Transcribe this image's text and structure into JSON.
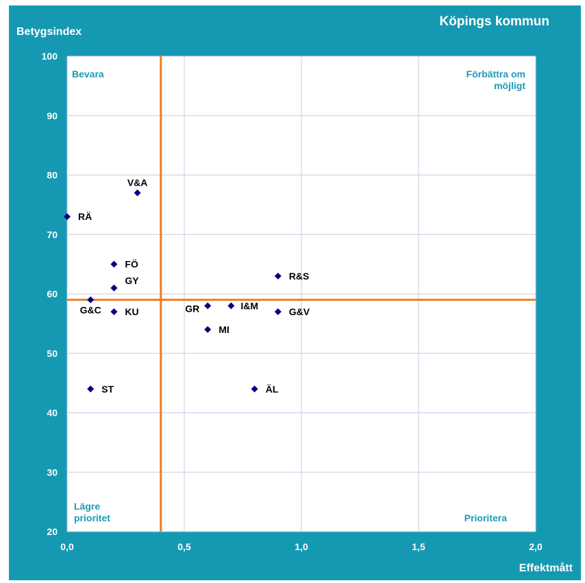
{
  "chart_data": {
    "type": "scatter",
    "title": "Köpings kommun",
    "xlabel": "Effektmått",
    "ylabel": "Betygsindex",
    "xlim": [
      0,
      2
    ],
    "ylim": [
      20,
      100
    ],
    "x_ticks": [
      0,
      0.5,
      1.0,
      1.5,
      2.0
    ],
    "x_tick_labels": [
      "0,0",
      "0,5",
      "1,0",
      "1,5",
      "2,0"
    ],
    "y_ticks": [
      20,
      30,
      40,
      50,
      60,
      70,
      80,
      90,
      100
    ],
    "y_tick_labels": [
      "20",
      "30",
      "40",
      "50",
      "60",
      "70",
      "80",
      "90",
      "100"
    ],
    "grid": true,
    "points": [
      {
        "label": "V&A",
        "x": 0.3,
        "y": 77
      },
      {
        "label": "RÄ",
        "x": 0.0,
        "y": 73
      },
      {
        "label": "FÖ",
        "x": 0.2,
        "y": 65
      },
      {
        "label": "GY",
        "x": 0.2,
        "y": 61
      },
      {
        "label": "G&C",
        "x": 0.1,
        "y": 59
      },
      {
        "label": "KU",
        "x": 0.2,
        "y": 57
      },
      {
        "label": "ST",
        "x": 0.1,
        "y": 44
      },
      {
        "label": "GR",
        "x": 0.6,
        "y": 58
      },
      {
        "label": "I&M",
        "x": 0.7,
        "y": 58
      },
      {
        "label": "MI",
        "x": 0.6,
        "y": 54
      },
      {
        "label": "R&S",
        "x": 0.9,
        "y": 63
      },
      {
        "label": "G&V",
        "x": 0.9,
        "y": 57
      },
      {
        "label": "ÄL",
        "x": 0.8,
        "y": 44
      }
    ],
    "reference_lines": {
      "x": 0.4,
      "y": 59
    },
    "quadrant_labels": {
      "top_left": [
        "Bevara"
      ],
      "top_right": [
        "Förbättra om",
        "möjligt"
      ],
      "bottom_left": [
        "Lägre",
        "prioritet"
      ],
      "bottom_right": [
        "Prioritera"
      ]
    },
    "colors": {
      "background": "#1599b3",
      "plot_area": "#ffffff",
      "grid": "#c8c8e6",
      "reference_line": "#f07c1e",
      "marker": "#000080",
      "quadrant_text": "#1a9bb5"
    }
  }
}
